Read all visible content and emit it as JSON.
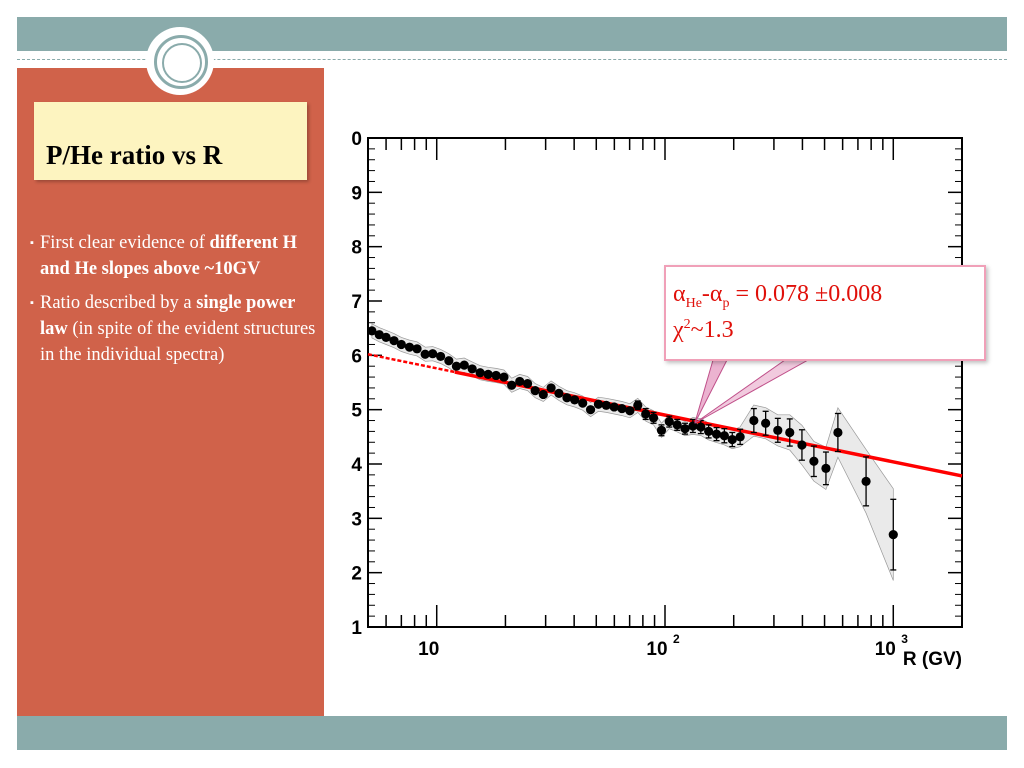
{
  "slide": {
    "title": "P/He ratio vs R",
    "bullets": [
      {
        "text_pre": "First clear evidence of ",
        "text_bold": "different  H and He slopes above ~10GV",
        "text_post": ""
      },
      {
        "text_pre": "Ratio described by a ",
        "text_bold": "single power law",
        "text_post": "  (in spite of the evident  structures  in the individual spectra)"
      }
    ]
  },
  "callout": {
    "alpha": "α",
    "sub_he": "He",
    "dash": "-",
    "sub_p": "p",
    "equals_value": " = 0.078 ±0.008",
    "chi": "χ",
    "sup2": "2",
    "chi_value": "~1.3"
  },
  "colors": {
    "band": "#8aabab",
    "sidebar": "#d0624a",
    "title_box": "#fdf4c0",
    "fit_line": "#ff0000",
    "callout_text": "#e0100a"
  },
  "chart_data": {
    "type": "scatter",
    "xlabel": "R (GV)",
    "ylabel": "",
    "x_scale": "log",
    "xlim": [
      5,
      2000
    ],
    "ylim": [
      1,
      10
    ],
    "y_ticks": [
      "1",
      "2",
      "3",
      "4",
      "5",
      "6",
      "7",
      "8",
      "9",
      "0"
    ],
    "x_ticks": [
      {
        "value": 10,
        "label": "10"
      },
      {
        "value": 100,
        "label": "10",
        "sup": "2"
      },
      {
        "value": 1000,
        "label": "10",
        "sup": "3"
      }
    ],
    "grid": false,
    "series": [
      {
        "type": "points",
        "x": [
          5.2,
          5.6,
          6.0,
          6.5,
          7.0,
          7.6,
          8.2,
          8.9,
          9.6,
          10.4,
          11.3,
          12.2,
          13.2,
          14.3,
          15.5,
          16.8,
          18.2,
          19.7,
          21.3,
          23.1,
          25.0,
          27.0,
          29.3,
          31.7,
          34.3,
          37.2,
          40.2,
          43.6,
          47.2,
          51.1,
          55.3,
          59.9,
          64.8,
          70.2,
          76.0,
          82.3,
          89.1,
          96.5,
          104.4,
          113.1,
          122.4,
          132.5,
          143.5,
          155.3,
          168.2,
          182.0,
          197.1,
          213.4,
          245,
          276,
          312,
          352,
          398,
          449,
          507,
          572,
          760,
          1000
        ],
        "y": [
          6.45,
          6.38,
          6.33,
          6.27,
          6.2,
          6.15,
          6.12,
          6.02,
          6.03,
          5.98,
          5.9,
          5.8,
          5.82,
          5.75,
          5.68,
          5.65,
          5.63,
          5.6,
          5.45,
          5.52,
          5.48,
          5.35,
          5.28,
          5.4,
          5.3,
          5.22,
          5.18,
          5.12,
          5.0,
          5.1,
          5.08,
          5.05,
          5.02,
          4.98,
          5.08,
          4.92,
          4.85,
          4.62,
          4.78,
          4.72,
          4.65,
          4.7,
          4.68,
          4.6,
          4.55,
          4.52,
          4.45,
          4.5,
          4.8,
          4.75,
          4.62,
          4.58,
          4.35,
          4.05,
          3.92,
          4.58,
          3.68,
          2.7
        ],
        "yerr": [
          0.05,
          0.05,
          0.05,
          0.05,
          0.05,
          0.05,
          0.05,
          0.05,
          0.05,
          0.05,
          0.05,
          0.05,
          0.05,
          0.05,
          0.05,
          0.05,
          0.05,
          0.05,
          0.05,
          0.05,
          0.05,
          0.05,
          0.05,
          0.05,
          0.05,
          0.05,
          0.05,
          0.05,
          0.06,
          0.06,
          0.06,
          0.07,
          0.07,
          0.07,
          0.08,
          0.1,
          0.1,
          0.1,
          0.1,
          0.1,
          0.1,
          0.12,
          0.12,
          0.12,
          0.12,
          0.13,
          0.13,
          0.14,
          0.22,
          0.22,
          0.22,
          0.25,
          0.28,
          0.28,
          0.3,
          0.35,
          0.45,
          0.65
        ]
      },
      {
        "type": "fit_line",
        "x": [
          5,
          2000
        ],
        "y": [
          6.02,
          3.78
        ],
        "color": "#ff0000"
      }
    ]
  }
}
